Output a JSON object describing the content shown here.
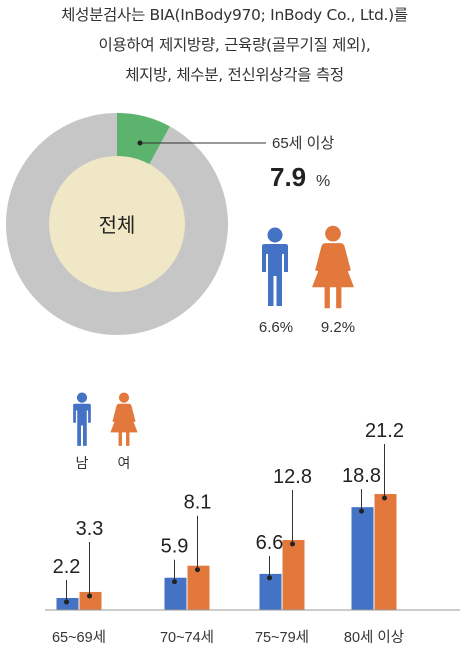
{
  "intro": {
    "lines": [
      "체성분검사는 BIA(InBody970; InBody Co., Ltd.)를",
      "이용하여 제지방량, 근육량(골무기질 제외),",
      "체지방, 체수분, 전신위상각을 측정"
    ]
  },
  "colors": {
    "male": "#4472c4",
    "female": "#e2783c",
    "donut_highlight": "#5cb36d",
    "donut_rest": "#c6c6c6",
    "donut_center": "#f0e7c6"
  },
  "icons": [
    "male-icon",
    "female-icon"
  ],
  "chart_data": [
    {
      "type": "pie",
      "center_label": "전체",
      "highlight_label": "65세 이상",
      "highlight_value": "7.9",
      "highlight_unit": "%",
      "slices": [
        {
          "label": "65세 이상",
          "value": 7.9
        },
        {
          "label": "",
          "value": 92.1
        }
      ],
      "by_sex": [
        {
          "sex": "male",
          "value_label": "6.6%",
          "value": 6.6
        },
        {
          "sex": "female",
          "value_label": "9.2%",
          "value": 9.2
        }
      ]
    },
    {
      "type": "bar",
      "legend": [
        {
          "sex": "male",
          "label": "남"
        },
        {
          "sex": "female",
          "label": "여"
        }
      ],
      "categories": [
        "65~69세",
        "70~74세",
        "75~79세",
        "80세 이상"
      ],
      "series": [
        {
          "name": "남",
          "values": [
            2.2,
            5.9,
            6.6,
            18.8
          ]
        },
        {
          "name": "여",
          "values": [
            3.3,
            8.1,
            12.8,
            21.2
          ]
        }
      ]
    }
  ]
}
